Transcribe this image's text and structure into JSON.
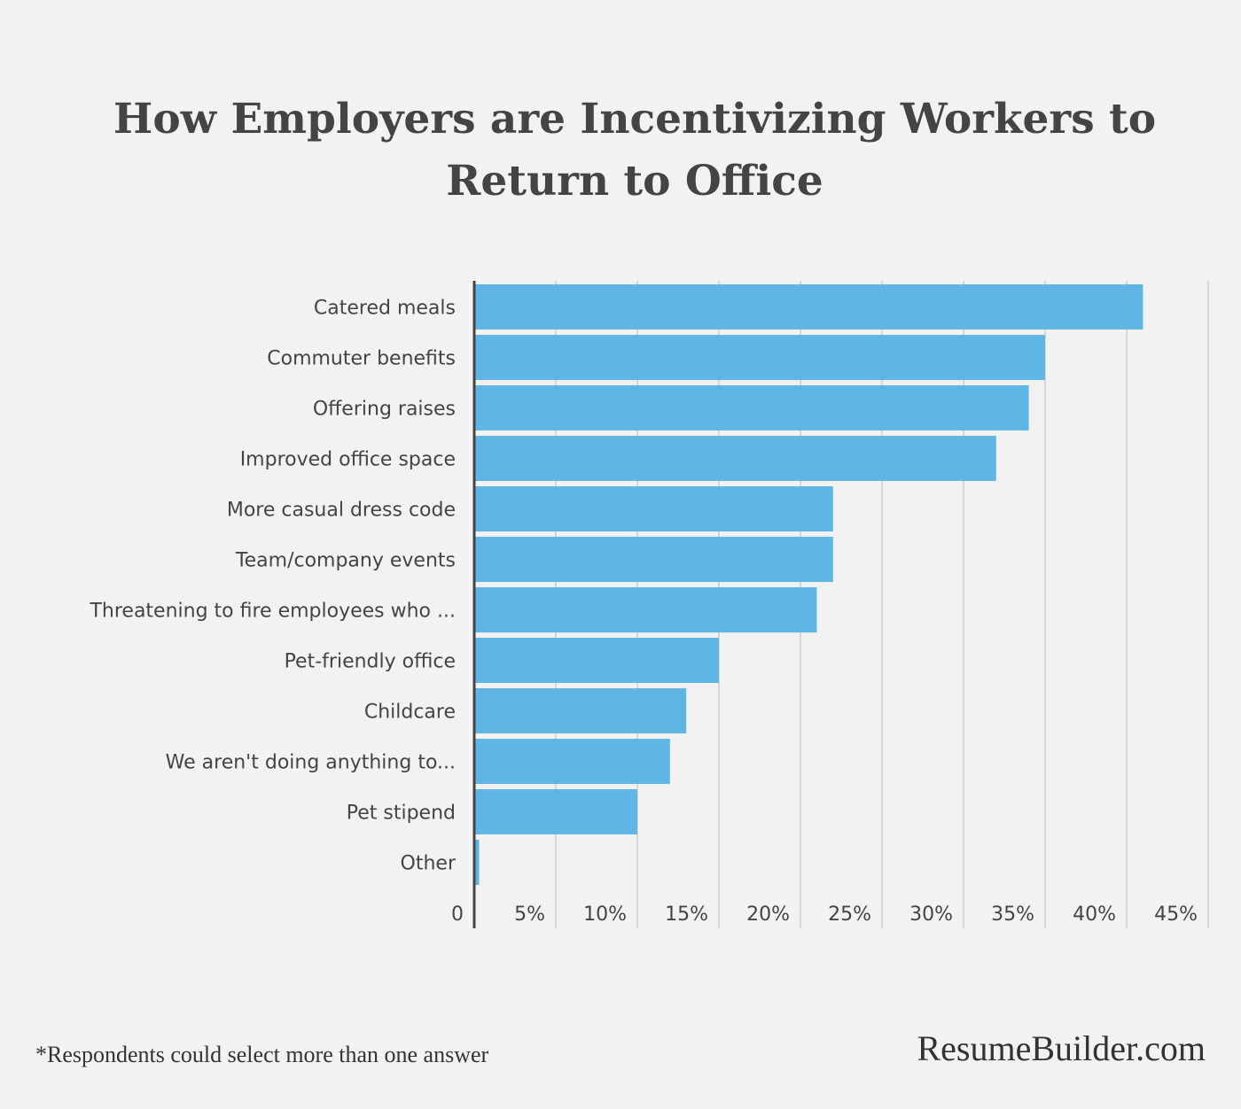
{
  "chart_data": {
    "type": "bar",
    "orientation": "horizontal",
    "title": "How Employers are Incentivizing Workers to Return to Office",
    "categories": [
      "Catered meals",
      "Commuter benefits",
      "Offering raises",
      "Improved office space",
      "More casual dress code",
      "Team/company events",
      "Threatening to fire employees who ...",
      "Pet-friendly office",
      "Childcare",
      "We aren't doing anything to...",
      "Pet stipend",
      "Other"
    ],
    "values": [
      41,
      35,
      34,
      32,
      22,
      22,
      21,
      15,
      13,
      12,
      10,
      0.3
    ],
    "x_ticks": [
      "0",
      "5%",
      "10%",
      "15%",
      "20%",
      "25%",
      "30%",
      "35%",
      "40%",
      "45%"
    ],
    "xlim": [
      0,
      45
    ],
    "grid": true,
    "bar_color": "#5fb6e4"
  },
  "footnote": "*Respondents could select more than one answer",
  "brand": "ResumeBuilder.com"
}
